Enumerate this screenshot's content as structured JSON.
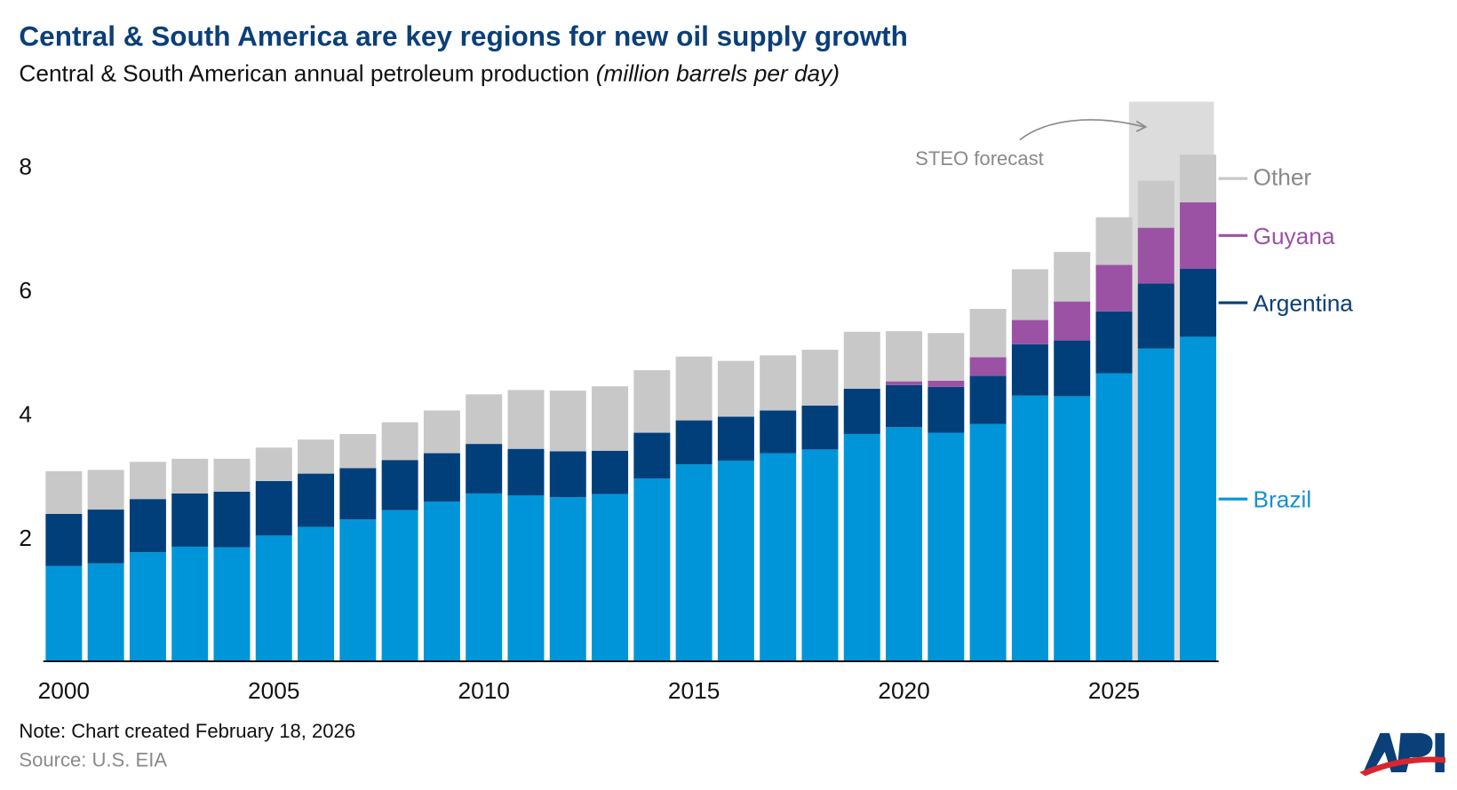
{
  "header": {
    "title": "Central & South America are key regions for new oil supply growth",
    "subtitle": "Central & South American annual petroleum production",
    "subtitle_units": "(million barrels per day)"
  },
  "footer": {
    "note": "Note: Chart created February 18, 2026",
    "source": "Source: U.S. EIA",
    "logo_text": "API"
  },
  "chart_data": {
    "type": "bar",
    "stacked": true,
    "title": "Central & South America are key regions for new oil supply growth",
    "ylabel": "million barrels per day",
    "ylim": [
      0,
      9
    ],
    "yticks": [
      "2",
      "4",
      "6",
      "8"
    ],
    "ytick_values": [
      2,
      4,
      6,
      8
    ],
    "xticks": [
      "2000",
      "2005",
      "2010",
      "2015",
      "2020",
      "2025"
    ],
    "categories": [
      2000,
      2001,
      2002,
      2003,
      2004,
      2005,
      2006,
      2007,
      2008,
      2009,
      2010,
      2011,
      2012,
      2013,
      2014,
      2015,
      2016,
      2017,
      2018,
      2019,
      2020,
      2021,
      2022,
      2023,
      2024,
      2025,
      2026,
      2027
    ],
    "forecast_annotation": "STEO forecast",
    "forecast_years": [
      2026,
      2027
    ],
    "series": [
      {
        "name": "Brazil",
        "color": "#0095d9",
        "label_color": "#1a8fd0",
        "values": [
          1.54,
          1.58,
          1.76,
          1.85,
          1.84,
          2.03,
          2.17,
          2.29,
          2.44,
          2.58,
          2.71,
          2.68,
          2.65,
          2.7,
          2.95,
          3.18,
          3.24,
          3.36,
          3.42,
          3.67,
          3.78,
          3.69,
          3.83,
          4.29,
          4.28,
          4.65,
          5.05,
          5.24
        ]
      },
      {
        "name": "Argentina",
        "color": "#003f7a",
        "label_color": "#0b3f78",
        "values": [
          0.84,
          0.87,
          0.86,
          0.86,
          0.9,
          0.88,
          0.86,
          0.83,
          0.81,
          0.78,
          0.8,
          0.75,
          0.74,
          0.7,
          0.74,
          0.71,
          0.71,
          0.69,
          0.71,
          0.73,
          0.68,
          0.74,
          0.78,
          0.83,
          0.9,
          1.0,
          1.05,
          1.1
        ]
      },
      {
        "name": "Guyana",
        "color": "#9b52a4",
        "label_color": "#9b52a4",
        "values": [
          0,
          0,
          0,
          0,
          0,
          0,
          0,
          0,
          0,
          0,
          0,
          0,
          0,
          0,
          0,
          0,
          0,
          0,
          0,
          0,
          0.06,
          0.1,
          0.3,
          0.39,
          0.63,
          0.75,
          0.9,
          1.07
        ]
      },
      {
        "name": "Other",
        "color": "#c8c8c8",
        "label_color": "#8a8a8a",
        "values": [
          0.69,
          0.64,
          0.6,
          0.56,
          0.53,
          0.54,
          0.55,
          0.55,
          0.61,
          0.69,
          0.8,
          0.95,
          0.98,
          1.04,
          1.01,
          1.03,
          0.9,
          0.89,
          0.9,
          0.92,
          0.81,
          0.77,
          0.78,
          0.82,
          0.8,
          0.77,
          0.76,
          0.77
        ]
      }
    ],
    "legend": "right, inline at last bar",
    "grid": false
  }
}
